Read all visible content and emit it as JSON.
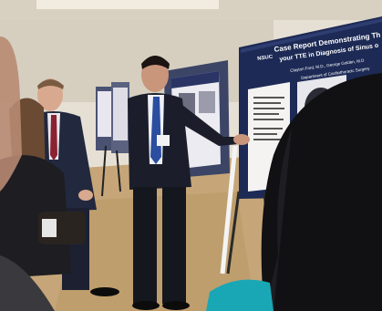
{
  "photo": {
    "description_hidden": "",
    "poster_main": {
      "logo_text": "NSUC",
      "title_line1": "Case Report Demonstrating The",
      "title_line2": "your TTE in Diagnosis of Sinus o",
      "authors": "Clayton Ford, M.D., George Golden, M.D",
      "department": "Department of Cardiothoracic Surgery"
    },
    "colors": {
      "poster_navy": "#1d2a55",
      "wall": "#d9d3c6",
      "carpet": "#c9a876",
      "suit_dark": "#1b1e2a",
      "tie_blue": "#2b4ea0"
    }
  }
}
